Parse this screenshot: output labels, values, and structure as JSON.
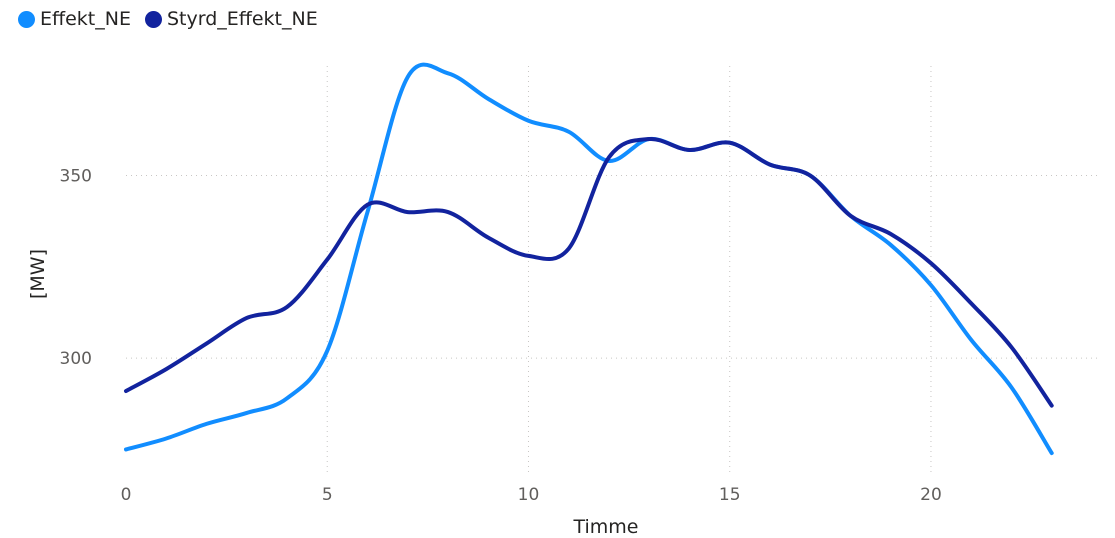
{
  "chart_data": {
    "type": "line",
    "title": "",
    "xlabel": "Timme",
    "ylabel": "[MW]",
    "x": [
      0,
      1,
      2,
      3,
      4,
      5,
      6,
      7,
      8,
      9,
      10,
      11,
      12,
      13,
      14,
      15,
      16,
      17,
      18,
      19,
      20,
      21,
      22,
      23
    ],
    "xticks": [
      0,
      5,
      10,
      15,
      20
    ],
    "yticks": [
      300,
      350
    ],
    "xlim": [
      0,
      24.2
    ],
    "ylim": [
      268,
      380
    ],
    "grid": true,
    "legend_position": "top-left",
    "series": [
      {
        "name": "Effekt_NE",
        "color": "#118DFF",
        "values": [
          275,
          278,
          282,
          285,
          289,
          302,
          340,
          377,
          378,
          371,
          365,
          362,
          354,
          360,
          357,
          359,
          353,
          350,
          339,
          331,
          320,
          305,
          292,
          274
        ]
      },
      {
        "name": "Styrd_Effekt_NE",
        "color": "#12239E",
        "values": [
          291,
          297,
          304,
          311,
          314,
          327,
          342,
          340,
          340,
          333,
          328,
          330,
          355,
          360,
          357,
          359,
          353,
          350,
          339,
          334,
          326,
          315,
          303,
          287
        ]
      }
    ]
  }
}
